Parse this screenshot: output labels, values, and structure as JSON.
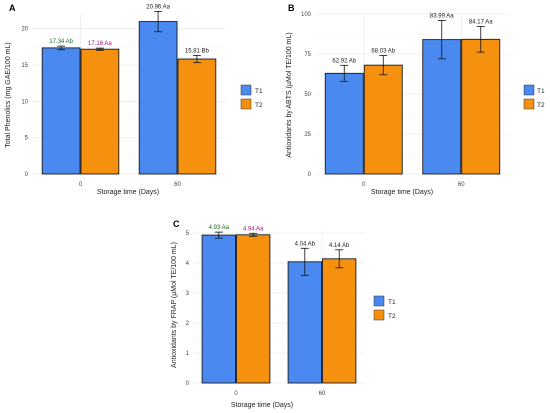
{
  "colors": {
    "T1": "#4a8af0",
    "T2": "#f5910f",
    "grid": "#e6e6e6",
    "label_green": "#1a6b2a",
    "label_magenta": "#a8167e",
    "label_default": "#222222"
  },
  "chart_data": [
    {
      "panel": "A",
      "type": "bar",
      "xlabel": "Storage time (Days)",
      "ylabel": "Total Phenolics (mg GAE/100 mL)",
      "categories": [
        "0",
        "60"
      ],
      "ylim": [
        0,
        22
      ],
      "yticks": [
        0,
        5,
        10,
        15,
        20
      ],
      "legend": "right",
      "series": [
        {
          "name": "T1",
          "values": [
            17.34,
            20.96
          ],
          "errors": [
            0.25,
            1.4
          ],
          "labels": [
            "17.34 Ab",
            "20.96 Aa"
          ],
          "label_colors": [
            "green",
            "default"
          ]
        },
        {
          "name": "T2",
          "values": [
            17.16,
            15.81
          ],
          "errors": [
            0.15,
            0.5
          ],
          "labels": [
            "17.16 Aa",
            "15.81 Bb"
          ],
          "label_colors": [
            "magenta",
            "default"
          ]
        }
      ]
    },
    {
      "panel": "B",
      "type": "bar",
      "xlabel": "Storage time (Days)",
      "ylabel": "Antioxidants by ABTS (µMol TE/100 mL)",
      "categories": [
        "0",
        "60"
      ],
      "ylim": [
        0,
        100
      ],
      "yticks": [
        0,
        25,
        50,
        75,
        100
      ],
      "legend": "right",
      "series": [
        {
          "name": "T1",
          "values": [
            62.92,
            83.99
          ],
          "errors": [
            5,
            12
          ],
          "labels": [
            "62.92 Ab",
            "83.99 Aa"
          ],
          "label_colors": [
            "default",
            "default"
          ]
        },
        {
          "name": "T2",
          "values": [
            68.03,
            84.17
          ],
          "errors": [
            6,
            8
          ],
          "labels": [
            "68.03 Ab",
            "84.17 Aa"
          ],
          "label_colors": [
            "default",
            "default"
          ]
        }
      ]
    },
    {
      "panel": "C",
      "type": "bar",
      "xlabel": "Storage time (Days)",
      "ylabel": "Antioxidants by FRAP (µMol TE/100 mL)",
      "categories": [
        "0",
        "60"
      ],
      "ylim": [
        0,
        5.1
      ],
      "yticks": [
        0,
        1,
        2,
        3,
        4,
        5
      ],
      "legend": "right",
      "series": [
        {
          "name": "T1",
          "values": [
            4.93,
            4.04
          ],
          "errors": [
            0.1,
            0.45
          ],
          "labels": [
            "4.93 Aa",
            "4.04 Ab"
          ],
          "label_colors": [
            "green",
            "default"
          ]
        },
        {
          "name": "T2",
          "values": [
            4.94,
            4.14
          ],
          "errors": [
            0.05,
            0.3
          ],
          "labels": [
            "4.94 Aa",
            "4.14 Ab"
          ],
          "label_colors": [
            "magenta",
            "default"
          ]
        }
      ]
    }
  ]
}
